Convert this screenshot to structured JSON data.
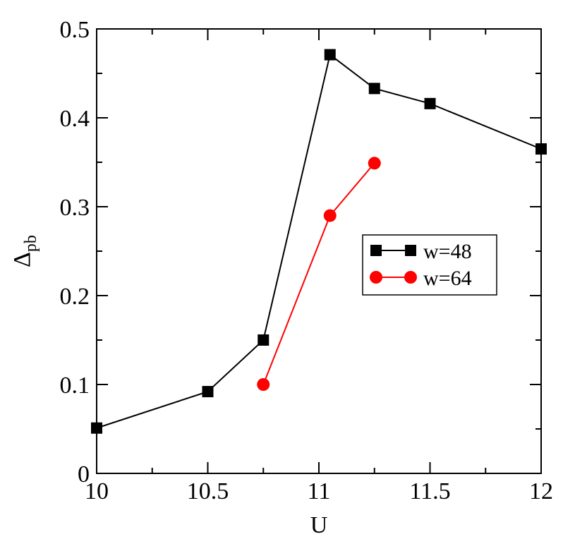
{
  "chart_data": {
    "type": "line",
    "title": "",
    "xlabel": "U",
    "ylabel_main": "Δ",
    "ylabel_sub": "pb",
    "xlim": [
      10,
      12
    ],
    "ylim": [
      0,
      0.5
    ],
    "x_ticks": [
      10,
      10.5,
      11,
      11.5,
      12
    ],
    "x_tick_labels": [
      "10",
      "10.5",
      "11",
      "11.5",
      "12"
    ],
    "y_ticks": [
      0,
      0.1,
      0.2,
      0.3,
      0.4,
      0.5
    ],
    "y_tick_labels": [
      "0",
      "0.1",
      "0.2",
      "0.3",
      "0.4",
      "0.5"
    ],
    "grid": false,
    "legend_position": "center-right",
    "series": [
      {
        "name": "w=48",
        "color": "#000000",
        "marker": "square",
        "x": [
          10,
          10.5,
          10.75,
          11.05,
          11.25,
          11.5,
          12
        ],
        "y": [
          0.051,
          0.092,
          0.15,
          0.471,
          0.433,
          0.416,
          0.365
        ]
      },
      {
        "name": "w=64",
        "color": "#ff0000",
        "marker": "circle",
        "x": [
          10.75,
          11.05,
          11.25
        ],
        "y": [
          0.1,
          0.29,
          0.349
        ]
      }
    ]
  }
}
